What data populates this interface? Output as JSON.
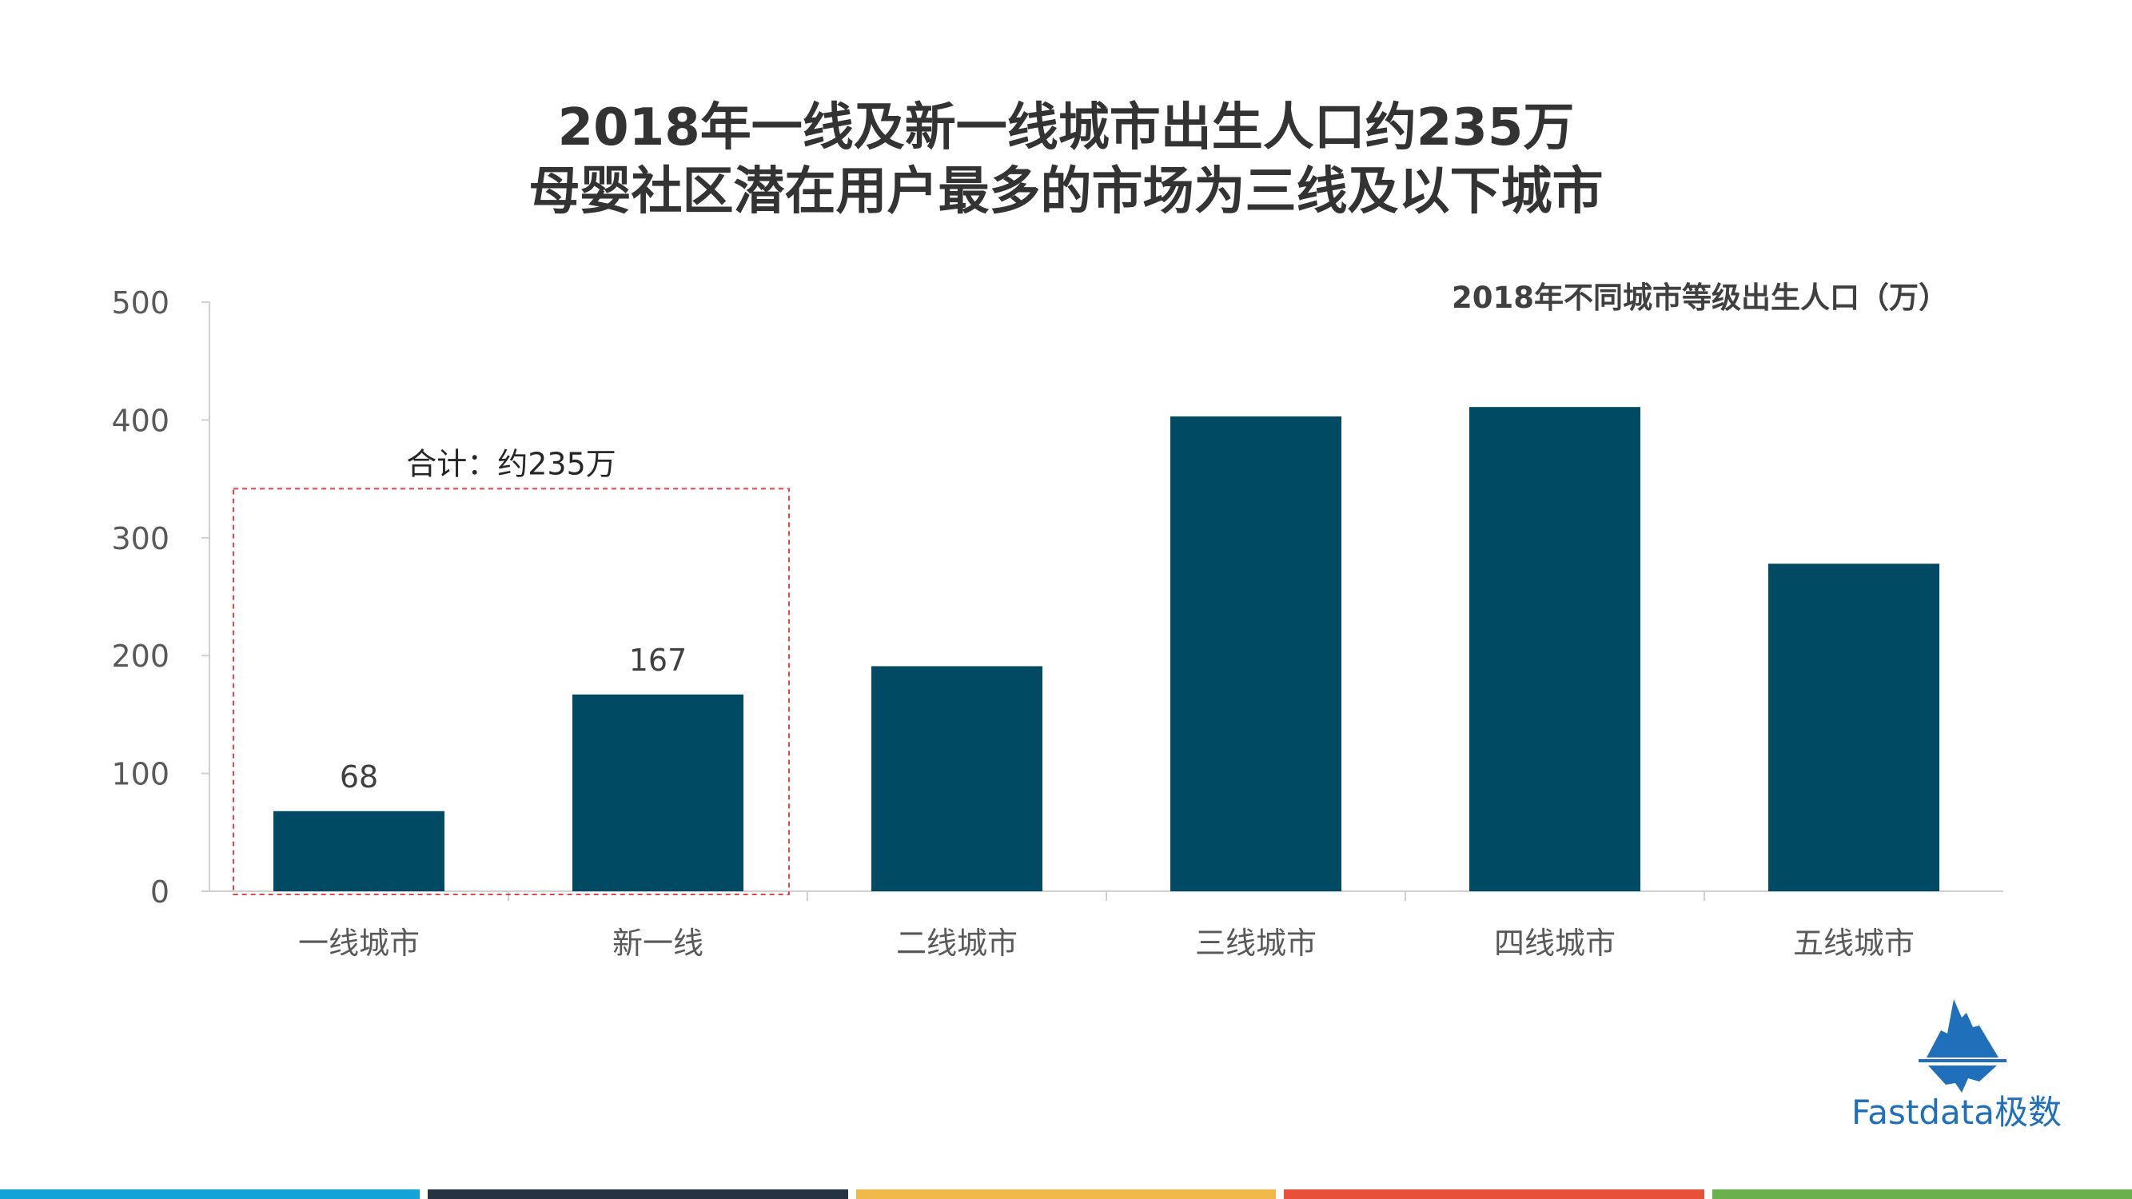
{
  "title_line1": "2018年一线及新一线城市出生人口约235万",
  "title_line2": "母婴社区潜在用户最多的市场为三线及以下城市",
  "chart_data": {
    "type": "bar",
    "title": "2018年不同城市等级出生人口（万）",
    "categories": [
      "一线城市",
      "新一线",
      "二线城市",
      "三线城市",
      "四线城市",
      "五线城市"
    ],
    "values": [
      68,
      167,
      191,
      403,
      411,
      278
    ],
    "data_labels": [
      "68",
      "167",
      "",
      "",
      "",
      ""
    ],
    "ylim": [
      0,
      500
    ],
    "yticks": [
      0,
      100,
      200,
      300,
      400,
      500
    ],
    "xlabel": "",
    "ylabel": "",
    "bar_color": "#004a63",
    "grid": false,
    "annotation": {
      "text": "合计：约235万",
      "covers_categories": [
        "一线城市",
        "新一线"
      ],
      "box_value_top": 320,
      "border_color": "#e64545"
    }
  },
  "logo": {
    "text": "Fastdata极数",
    "icon": "iceberg-icon",
    "color": "#1f6fba"
  },
  "footer_bar_colors": [
    "#13a3d9",
    "#253342",
    "#f0b94a",
    "#e8503a",
    "#6ab04c"
  ]
}
